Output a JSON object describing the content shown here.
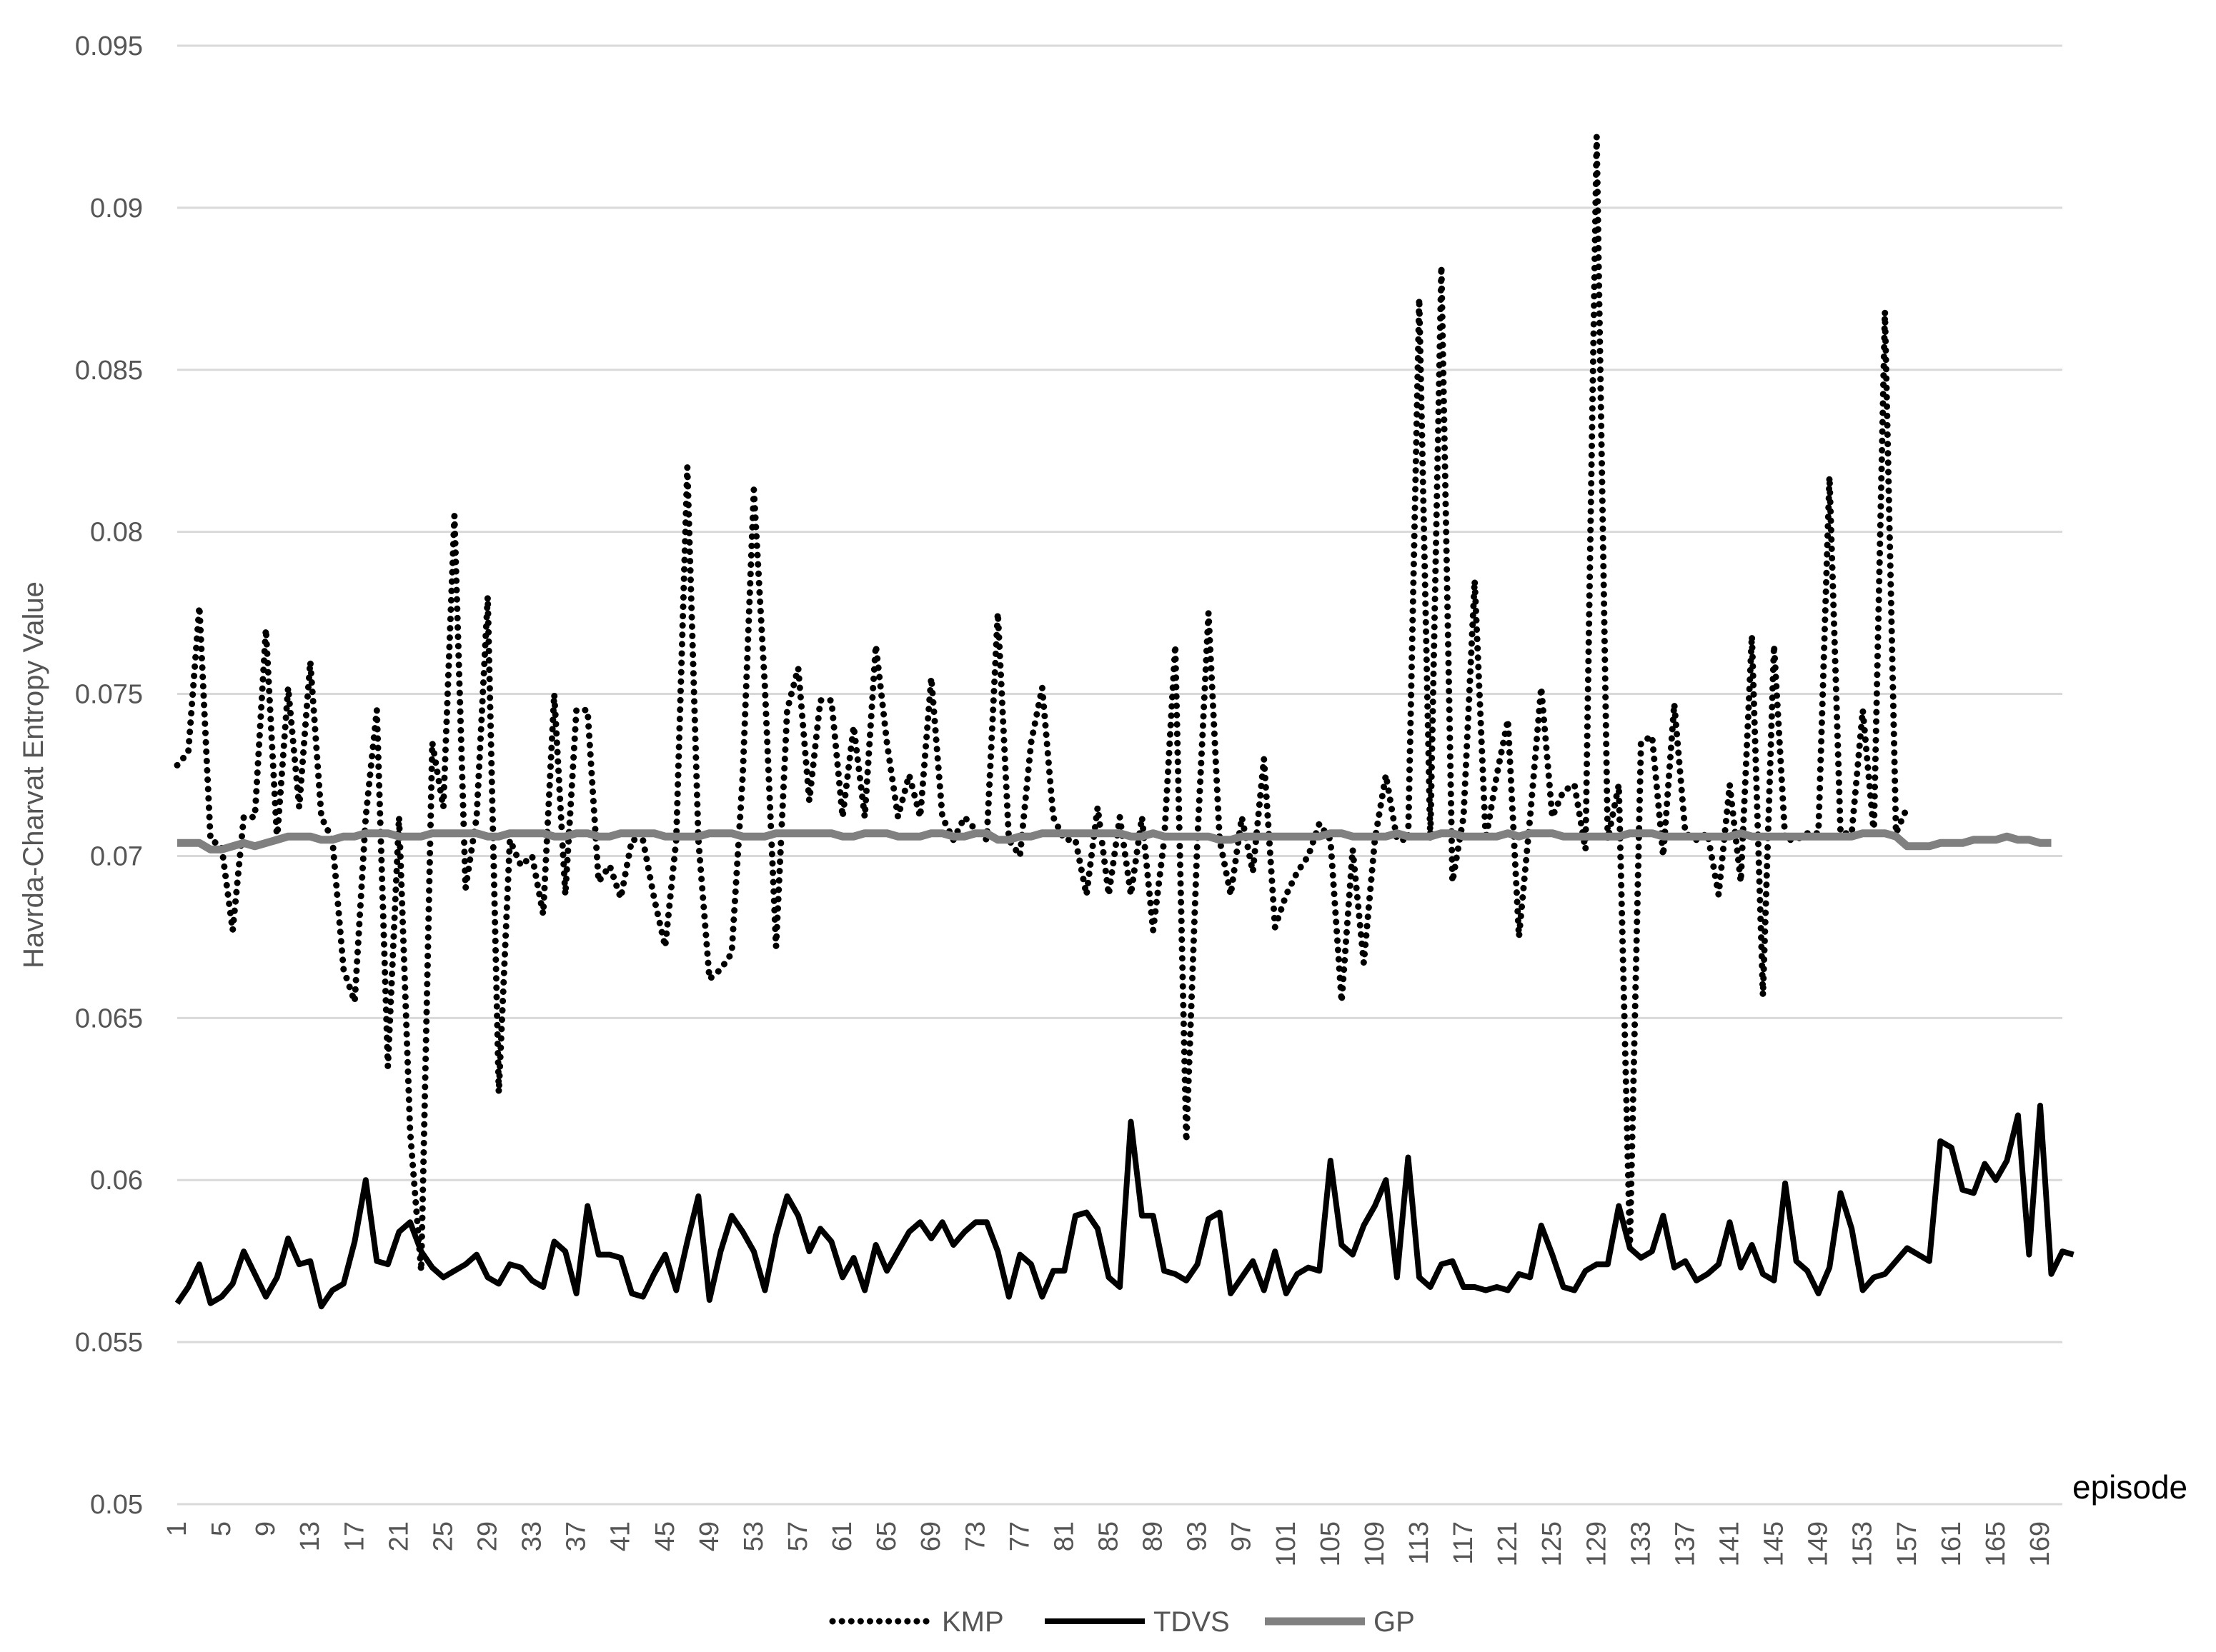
{
  "chart_data": {
    "type": "line",
    "title": "",
    "xlabel": "episode",
    "ylabel": "Havrda-Charvat  Entropy Value",
    "ylim": [
      0.05,
      0.095
    ],
    "yticks": [
      0.05,
      0.055,
      0.06,
      0.065,
      0.07,
      0.075,
      0.08,
      0.085,
      0.09,
      0.095
    ],
    "ytick_labels": [
      "0.05",
      "0.055",
      "0.06",
      "0.065",
      "0.07",
      "0.075",
      "0.08",
      "0.085",
      "0.09",
      "0.095"
    ],
    "xlim": [
      1,
      171
    ],
    "xticks": [
      1,
      5,
      9,
      13,
      17,
      21,
      25,
      29,
      33,
      37,
      41,
      45,
      49,
      53,
      57,
      61,
      65,
      69,
      73,
      77,
      81,
      85,
      89,
      93,
      97,
      101,
      105,
      109,
      113,
      117,
      121,
      125,
      129,
      133,
      137,
      141,
      145,
      149,
      153,
      157,
      161,
      165,
      169
    ],
    "grid": "horizontal",
    "legend": "bottom",
    "series": [
      {
        "name": "KMP",
        "style": "dotted",
        "color": "#000000",
        "values": [
          0.0728,
          0.0732,
          0.0777,
          0.0705,
          0.0703,
          0.0677,
          0.0712,
          0.0712,
          0.077,
          0.0705,
          0.0752,
          0.0715,
          0.076,
          0.0712,
          0.0705,
          0.0665,
          0.0655,
          0.0712,
          0.0745,
          0.0635,
          0.0712,
          0.0615,
          0.0572,
          0.0735,
          0.0715,
          0.0805,
          0.069,
          0.0712,
          0.078,
          0.0627,
          0.0705,
          0.0697,
          0.07,
          0.0682,
          0.075,
          0.0688,
          0.0745,
          0.0745,
          0.0692,
          0.0697,
          0.0687,
          0.0705,
          0.0705,
          0.0687,
          0.0672,
          0.0705,
          0.082,
          0.0705,
          0.0662,
          0.0665,
          0.067,
          0.0725,
          0.0813,
          0.0752,
          0.0672,
          0.0745,
          0.0758,
          0.0717,
          0.0748,
          0.0748,
          0.0712,
          0.074,
          0.0712,
          0.0765,
          0.0735,
          0.0712,
          0.0725,
          0.0712,
          0.0755,
          0.0712,
          0.0705,
          0.0712,
          0.0708,
          0.0705,
          0.0775,
          0.0705,
          0.07,
          0.0735,
          0.0752,
          0.0712,
          0.0705,
          0.0705,
          0.0688,
          0.0715,
          0.0688,
          0.0712,
          0.0688,
          0.0712,
          0.0677,
          0.0705,
          0.0765,
          0.0612,
          0.0705,
          0.0775,
          0.0705,
          0.0688,
          0.0712,
          0.0695,
          0.073,
          0.0678,
          0.0688,
          0.0695,
          0.07,
          0.071,
          0.0705,
          0.0655,
          0.0702,
          0.0667,
          0.0705,
          0.0725,
          0.0705,
          0.0705,
          0.0872,
          0.0705,
          0.0882,
          0.0692,
          0.0712,
          0.0785,
          0.0705,
          0.0725,
          0.0742,
          0.0675,
          0.0712,
          0.0752,
          0.0712,
          0.072,
          0.0722,
          0.0702,
          0.0922,
          0.0705,
          0.0722,
          0.058,
          0.0735,
          0.0737,
          0.07,
          0.0747,
          0.0707,
          0.0705,
          0.0707,
          0.0688,
          0.0722,
          0.0692,
          0.0768,
          0.0657,
          0.0765,
          0.0705,
          0.0705,
          0.0707,
          0.0707,
          0.0817,
          0.0707,
          0.0707,
          0.0745,
          0.0707,
          0.0868,
          0.0707,
          0.0715
        ]
      },
      {
        "name": "TDVS",
        "style": "solid",
        "color": "#000000",
        "values": [
          0.0562,
          0.0567,
          0.0574,
          0.0562,
          0.0564,
          0.0568,
          0.0578,
          0.0571,
          0.0564,
          0.057,
          0.0582,
          0.0574,
          0.0575,
          0.0561,
          0.0566,
          0.0568,
          0.0581,
          0.06,
          0.0575,
          0.0574,
          0.0584,
          0.0587,
          0.0578,
          0.0573,
          0.057,
          0.0572,
          0.0574,
          0.0577,
          0.057,
          0.0568,
          0.0574,
          0.0573,
          0.0569,
          0.0567,
          0.0581,
          0.0578,
          0.0565,
          0.0592,
          0.0577,
          0.0577,
          0.0576,
          0.0565,
          0.0564,
          0.0571,
          0.0577,
          0.0566,
          0.0581,
          0.0595,
          0.0563,
          0.0578,
          0.0589,
          0.0584,
          0.0578,
          0.0566,
          0.0583,
          0.0595,
          0.0589,
          0.0578,
          0.0585,
          0.0581,
          0.057,
          0.0576,
          0.0566,
          0.058,
          0.0572,
          0.0578,
          0.0584,
          0.0587,
          0.0582,
          0.0587,
          0.058,
          0.0584,
          0.0587,
          0.0587,
          0.0578,
          0.0564,
          0.0577,
          0.0574,
          0.0564,
          0.0572,
          0.0572,
          0.0589,
          0.059,
          0.0585,
          0.057,
          0.0567,
          0.0618,
          0.0589,
          0.0589,
          0.0572,
          0.0571,
          0.0569,
          0.0574,
          0.0588,
          0.059,
          0.0565,
          0.057,
          0.0575,
          0.0566,
          0.0578,
          0.0565,
          0.0571,
          0.0573,
          0.0572,
          0.0606,
          0.058,
          0.0577,
          0.0586,
          0.0592,
          0.06,
          0.057,
          0.0607,
          0.057,
          0.0567,
          0.0574,
          0.0575,
          0.0567,
          0.0567,
          0.0566,
          0.0567,
          0.0566,
          0.0571,
          0.057,
          0.0586,
          0.0577,
          0.0567,
          0.0566,
          0.0572,
          0.0574,
          0.0574,
          0.0592,
          0.0579,
          0.0576,
          0.0578,
          0.0589,
          0.0573,
          0.0575,
          0.0569,
          0.0571,
          0.0574,
          0.0587,
          0.0573,
          0.058,
          0.0571,
          0.0569,
          0.0599,
          0.0575,
          0.0572,
          0.0565,
          0.0573,
          0.0596,
          0.0585,
          0.0566,
          0.057,
          0.0571,
          0.0575,
          0.0579,
          0.0577,
          0.0575,
          0.0612,
          0.061,
          0.0597,
          0.0596,
          0.0605,
          0.06,
          0.0606,
          0.062,
          0.0577,
          0.0623,
          0.0571,
          0.0578,
          0.0577
        ]
      },
      {
        "name": "GP",
        "style": "solid-thick",
        "color": "#808080",
        "values": [
          0.0704,
          0.0704,
          0.0704,
          0.0702,
          0.0702,
          0.0703,
          0.0704,
          0.0703,
          0.0704,
          0.0705,
          0.0706,
          0.0706,
          0.0706,
          0.0705,
          0.0705,
          0.0706,
          0.0706,
          0.0707,
          0.0707,
          0.0707,
          0.0706,
          0.0706,
          0.0706,
          0.0707,
          0.0707,
          0.0707,
          0.0707,
          0.0707,
          0.0706,
          0.0706,
          0.0707,
          0.0707,
          0.0707,
          0.0707,
          0.0706,
          0.0706,
          0.0707,
          0.0707,
          0.0706,
          0.0706,
          0.0707,
          0.0707,
          0.0707,
          0.0707,
          0.0706,
          0.0706,
          0.0706,
          0.0706,
          0.0707,
          0.0707,
          0.0707,
          0.0706,
          0.0706,
          0.0706,
          0.0707,
          0.0707,
          0.0707,
          0.0707,
          0.0707,
          0.0707,
          0.0706,
          0.0706,
          0.0707,
          0.0707,
          0.0707,
          0.0706,
          0.0706,
          0.0706,
          0.0707,
          0.0707,
          0.0706,
          0.0706,
          0.0707,
          0.0707,
          0.0705,
          0.0705,
          0.0706,
          0.0706,
          0.0707,
          0.0707,
          0.0707,
          0.0707,
          0.0707,
          0.0707,
          0.0707,
          0.0707,
          0.0706,
          0.0706,
          0.0707,
          0.0706,
          0.0706,
          0.0706,
          0.0706,
          0.0706,
          0.0705,
          0.0705,
          0.0706,
          0.0706,
          0.0706,
          0.0706,
          0.0706,
          0.0706,
          0.0706,
          0.0706,
          0.0707,
          0.0707,
          0.0706,
          0.0706,
          0.0706,
          0.0706,
          0.0707,
          0.0706,
          0.0706,
          0.0706,
          0.0707,
          0.0707,
          0.0706,
          0.0706,
          0.0706,
          0.0706,
          0.0707,
          0.0706,
          0.0707,
          0.0707,
          0.0707,
          0.0706,
          0.0706,
          0.0706,
          0.0706,
          0.0706,
          0.0706,
          0.0707,
          0.0707,
          0.0707,
          0.0706,
          0.0706,
          0.0706,
          0.0706,
          0.0706,
          0.0706,
          0.0706,
          0.0707,
          0.0706,
          0.0706,
          0.0706,
          0.0706,
          0.0706,
          0.0706,
          0.0706,
          0.0706,
          0.0706,
          0.0706,
          0.0707,
          0.0707,
          0.0707,
          0.0706,
          0.0703,
          0.0703,
          0.0703,
          0.0704,
          0.0704,
          0.0704,
          0.0705,
          0.0705,
          0.0705,
          0.0706,
          0.0705,
          0.0705,
          0.0704,
          0.0704
        ]
      }
    ]
  }
}
